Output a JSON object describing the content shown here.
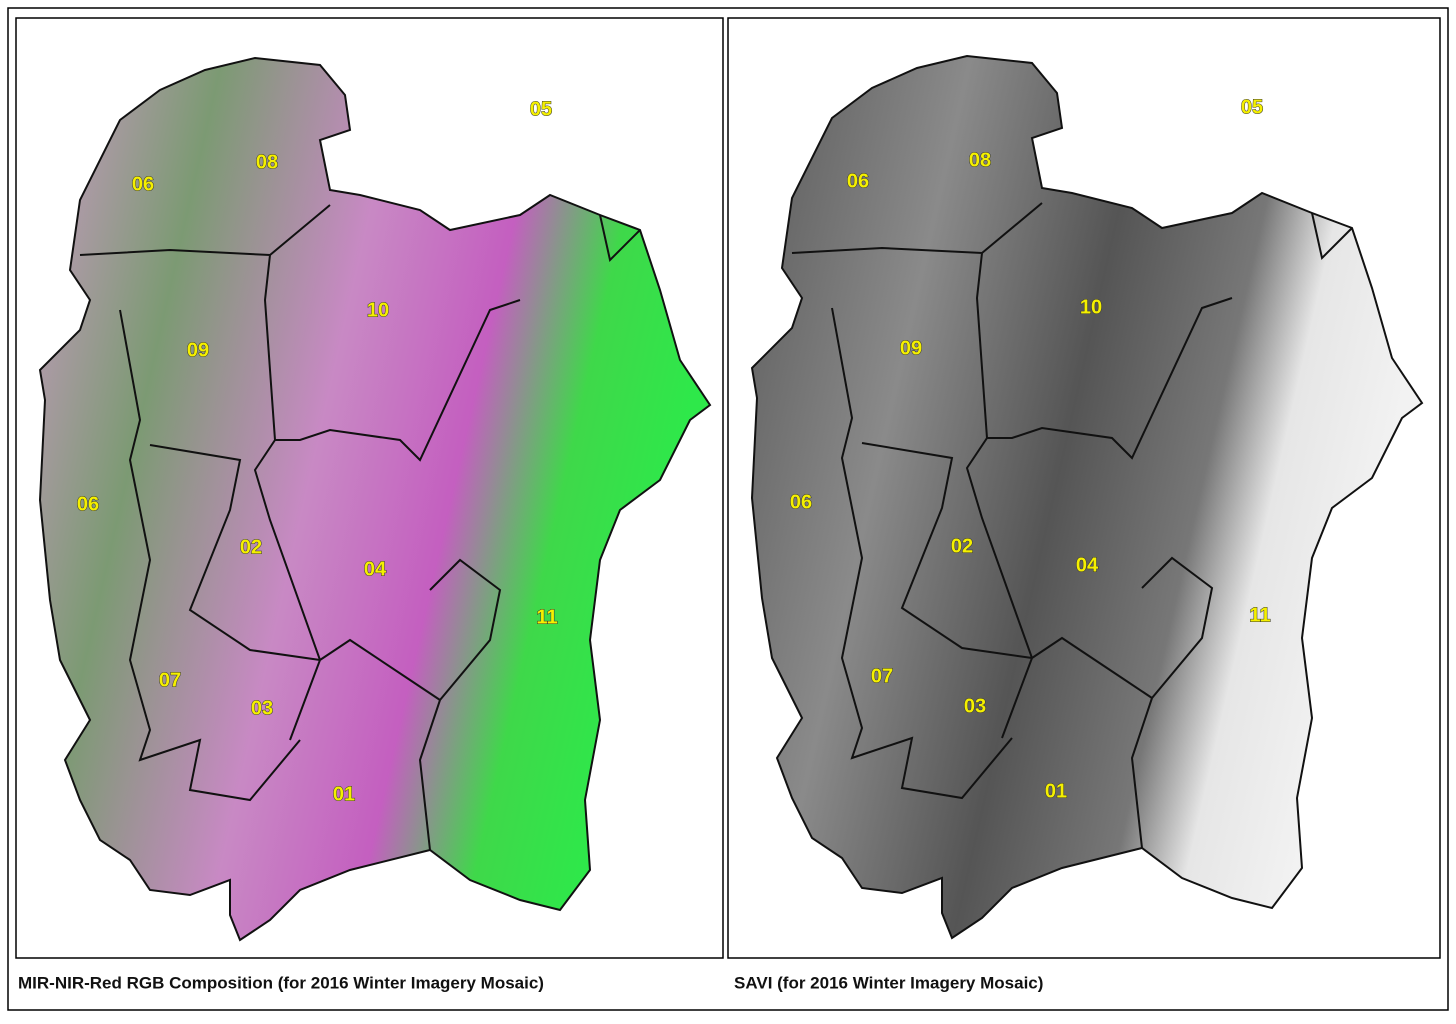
{
  "panels": [
    {
      "caption": "MIR-NIR-Red RGB Composition (for 2016 Winter Imagery Mosaic)",
      "labels": [
        "05",
        "08",
        "06",
        "10",
        "09",
        "06",
        "02",
        "04",
        "11",
        "07",
        "03",
        "01"
      ]
    },
    {
      "caption": "SAVI (for 2016 Winter Imagery Mosaic)",
      "labels": [
        "05",
        "08",
        "06",
        "10",
        "09",
        "06",
        "02",
        "04",
        "11",
        "07",
        "03",
        "01"
      ]
    }
  ]
}
